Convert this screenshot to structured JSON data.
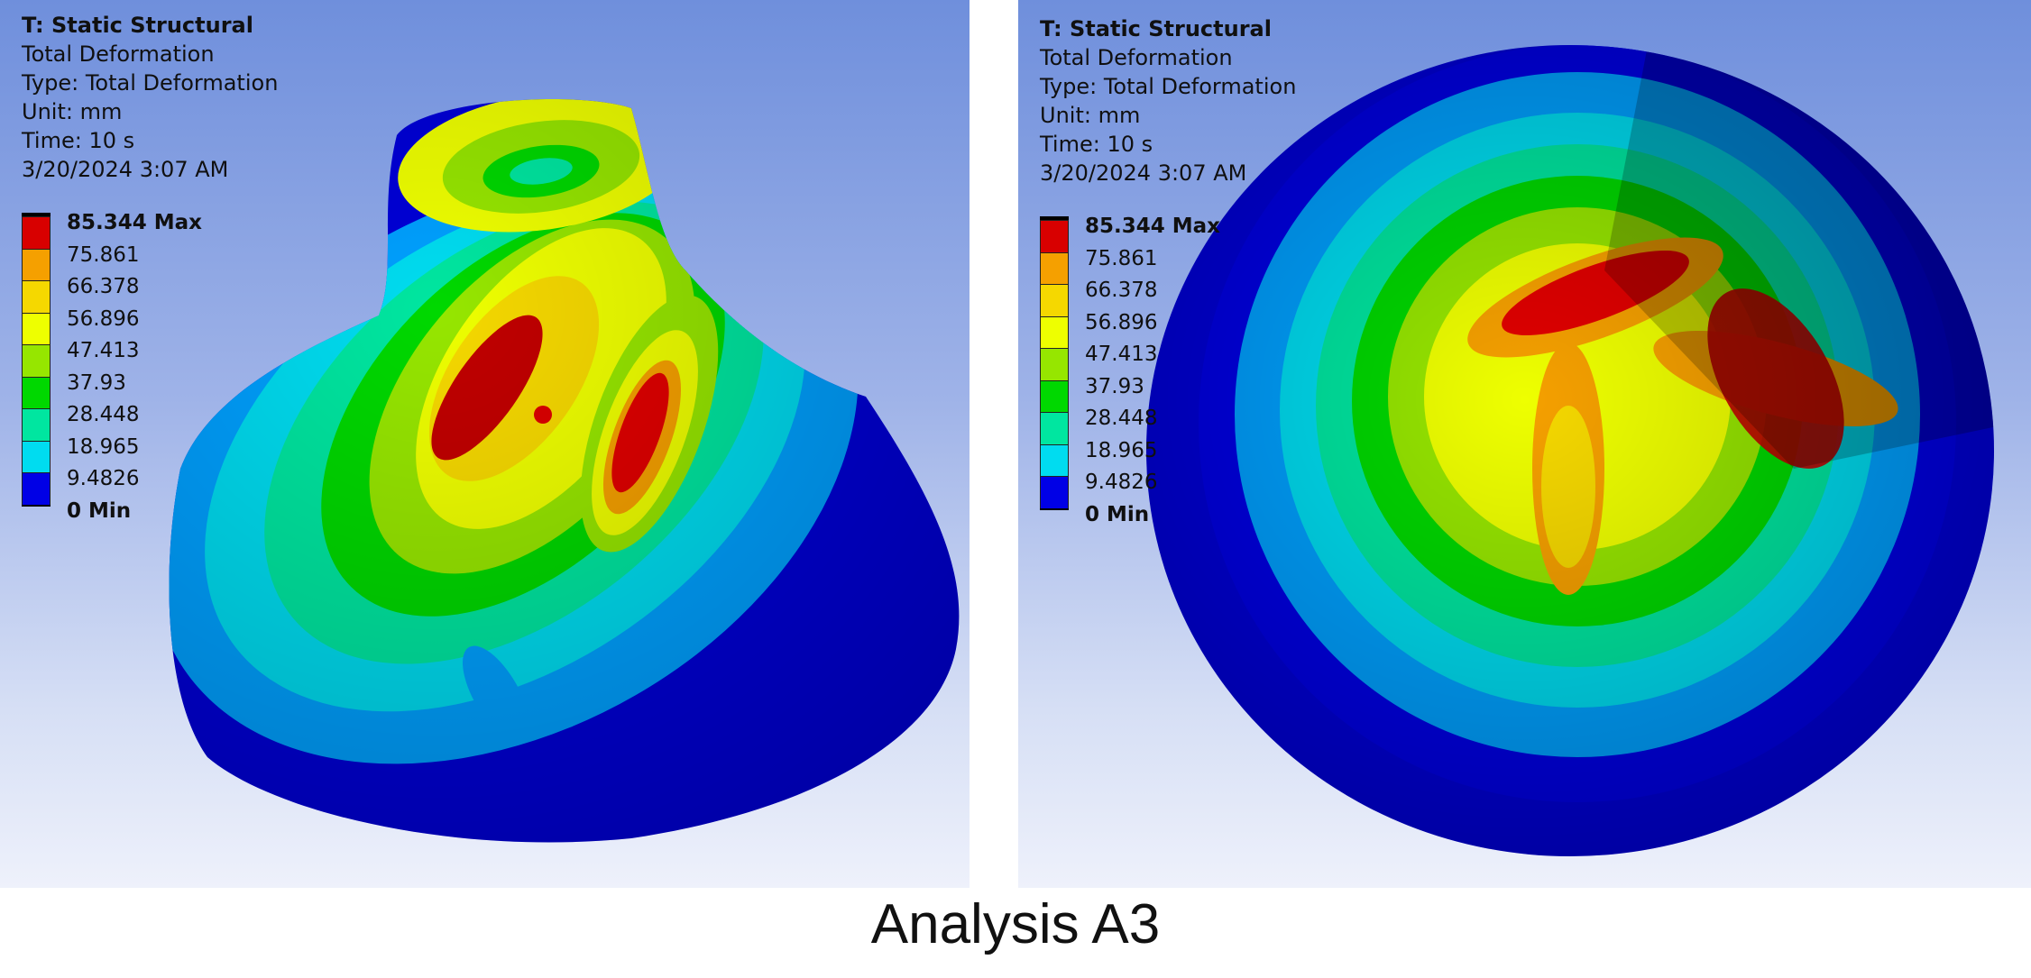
{
  "left_view": {
    "info": {
      "analysis": "T: Static Structural",
      "result": "Total Deformation",
      "type": "Type: Total Deformation",
      "unit": "Unit: mm",
      "time": "Time: 10 s",
      "date": "3/20/2024 3:07 AM"
    },
    "legend": [
      {
        "label": "85.344 Max",
        "color": "#d80000",
        "bold": true
      },
      {
        "label": "75.861",
        "color": "#f5a000"
      },
      {
        "label": "66.378",
        "color": "#f5d800"
      },
      {
        "label": "56.896",
        "color": "#eeff00"
      },
      {
        "label": "47.413",
        "color": "#96e600"
      },
      {
        "label": "37.93",
        "color": "#00d800"
      },
      {
        "label": "28.448",
        "color": "#00e6a0"
      },
      {
        "label": "18.965",
        "color": "#00dcf0"
      },
      {
        "label": "9.4826",
        "color": "#00a0ff"
      },
      {
        "label": "0 Min",
        "color": "#0000e6",
        "bold": true
      }
    ]
  },
  "right_view": {
    "info": {
      "analysis": "T: Static Structural",
      "result": "Total Deformation",
      "type": "Type: Total Deformation",
      "unit": "Unit: mm",
      "time": "Time: 10 s",
      "date": "3/20/2024 3:07 AM"
    },
    "legend": [
      {
        "label": "85.344 Max",
        "color": "#d80000",
        "bold": true
      },
      {
        "label": "75.861",
        "color": "#f5a000"
      },
      {
        "label": "66.378",
        "color": "#f5d800"
      },
      {
        "label": "56.896",
        "color": "#eeff00"
      },
      {
        "label": "47.413",
        "color": "#96e600"
      },
      {
        "label": "37.93",
        "color": "#00d800"
      },
      {
        "label": "28.448",
        "color": "#00e6a0"
      },
      {
        "label": "18.965",
        "color": "#00dcf0"
      },
      {
        "label": "9.4826",
        "color": "#00a0ff"
      },
      {
        "label": "0 Min",
        "color": "#0000e6",
        "bold": true
      }
    ]
  },
  "caption": "Analysis A3"
}
